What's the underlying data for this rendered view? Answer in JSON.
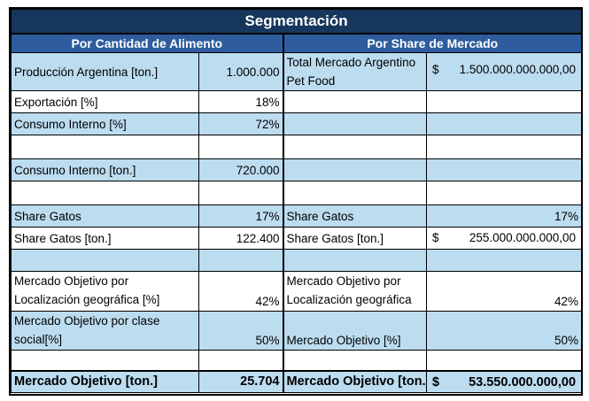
{
  "title": "Segmentación",
  "left_header": "Por Cantidad de Alimento",
  "right_header": "Por Share de Mercado",
  "rows": {
    "r1": {
      "l_label": "Producción Argentina [ton.]",
      "l_val": "1.000.000",
      "r_label": "Total Mercado Argentino Pet Food",
      "r_cur": "$",
      "r_val": "1.500.000.000.000,00"
    },
    "r2": {
      "l_label": "Exportación [%]",
      "l_val": "18%"
    },
    "r3": {
      "l_label": "Consumo Interno [%]",
      "l_val": "72%"
    },
    "r5": {
      "l_label": "Consumo Interno [ton.]",
      "l_val": "720.000"
    },
    "r7": {
      "l_label": "Share Gatos",
      "l_val": "17%",
      "r_label": "Share Gatos",
      "r_val": "17%"
    },
    "r8": {
      "l_label": "Share Gatos [ton.]",
      "l_val": "122.400",
      "r_label": "Share Gatos [ton.]",
      "r_cur": "$",
      "r_val": "255.000.000.000,00"
    },
    "r10": {
      "l_label": "Mercado Objetivo por Localización geográfica [%]",
      "l_val": "42%",
      "r_label": "Mercado Objetivo por Localización geográfica",
      "r_val": "42%"
    },
    "r11": {
      "l_label": "Mercado Objetivo por clase social[%]",
      "l_val": "50%",
      "r_label": "Mercado Objetivo [%]",
      "r_val": "50%"
    }
  },
  "total": {
    "l_label": "Mercado Objetivo [ton.]",
    "l_val": "25.704",
    "r_label": "Mercado Objetivo [ton.]",
    "r_cur": "$",
    "r_val": "53.550.000.000,00"
  }
}
